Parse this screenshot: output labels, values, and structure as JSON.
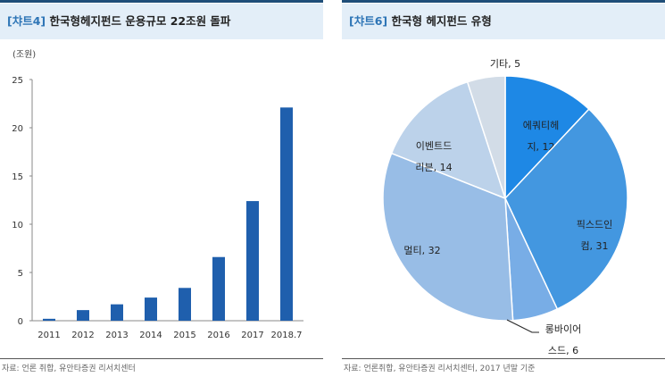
{
  "left": {
    "tag": "[챠트4]",
    "title": "한국형헤지펀드 운용규모 22조원 돌파",
    "source": "자료: 언론 취합, 유안타증권 리서치센터"
  },
  "right": {
    "tag": "[챠트6]",
    "title": "한국형 헤지펀드 유형",
    "source": "자료: 언론취합, 유안타증권 리서치센터, 2017 년말 기준"
  },
  "chart_data": [
    {
      "type": "bar",
      "unit_label": "(조원)",
      "categories": [
        "2011",
        "2012",
        "2013",
        "2014",
        "2015",
        "2016",
        "2017",
        "2018.7"
      ],
      "values": [
        0.2,
        1.1,
        1.7,
        2.4,
        3.4,
        6.6,
        12.4,
        22.1
      ],
      "ylim": [
        0,
        25
      ],
      "yticks": [
        0,
        5,
        10,
        15,
        20,
        25
      ],
      "color": "#1f5fad",
      "grid": false
    },
    {
      "type": "pie",
      "slices": [
        {
          "label": "에쿼티헤지, 12",
          "line1": "에쿼티헤",
          "line2": "지, 12",
          "value": 12,
          "color": "#1e88e5"
        },
        {
          "label": "픽스드인컴, 31",
          "line1": "픽스드인",
          "line2": "컴, 31",
          "value": 31,
          "color": "#4397e0"
        },
        {
          "label": "롱바이어스드, 6",
          "line1": "롱바이어",
          "line2": "스드, 6",
          "value": 6,
          "color": "#78ade6"
        },
        {
          "label": "멀티, 32",
          "line1": "멀티, 32",
          "line2": "",
          "value": 32,
          "color": "#98bde6"
        },
        {
          "label": "이벤트드리븐, 14",
          "line1": "이벤트드",
          "line2": "리븐, 14",
          "value": 14,
          "color": "#bcd2ea"
        },
        {
          "label": "기타, 5",
          "line1": "기타, 5",
          "line2": "",
          "value": 5,
          "color": "#d2dce7"
        }
      ]
    }
  ]
}
